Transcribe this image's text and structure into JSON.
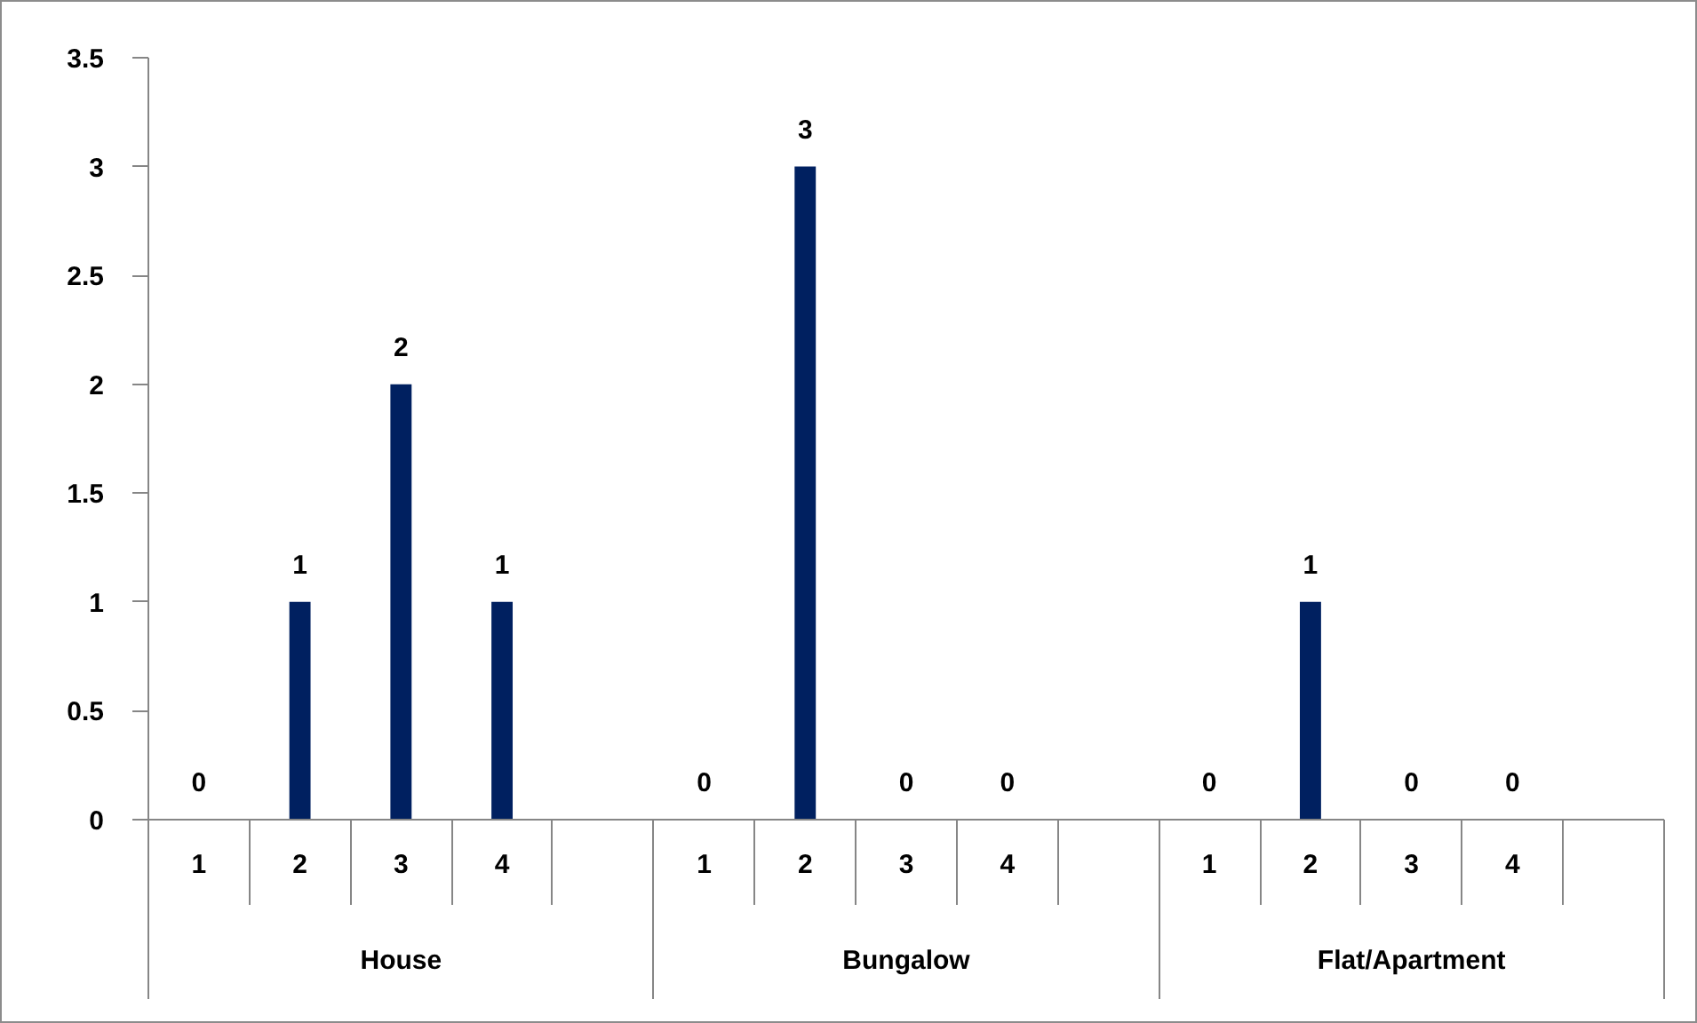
{
  "chart_data": {
    "type": "bar",
    "categories": [
      "1",
      "2",
      "3",
      "4",
      null,
      "1",
      "2",
      "3",
      "4",
      null,
      "1",
      "2",
      "3",
      "4",
      null
    ],
    "values": [
      0,
      1,
      2,
      1,
      null,
      0,
      3,
      0,
      0,
      null,
      0,
      1,
      0,
      0,
      null
    ],
    "color": "#002060",
    "ylim": [
      0,
      3.5
    ],
    "yticks": [
      0,
      0.5,
      1,
      1.5,
      2,
      2.5,
      3,
      3.5
    ],
    "data_labels": true,
    "annotations": [
      "House",
      "Bungalow",
      "Flat/Apartment"
    ]
  }
}
